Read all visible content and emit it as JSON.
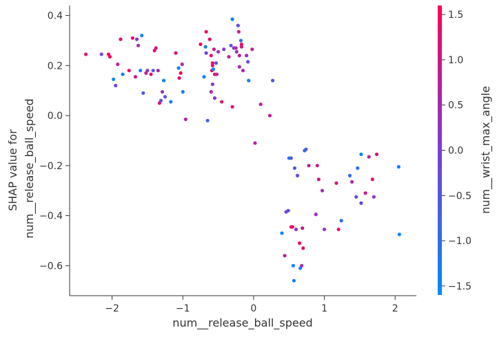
{
  "chart_data": {
    "type": "scatter",
    "xlabel": "num__release_ball_speed",
    "ylabel_lines": [
      "SHAP value for",
      "num__release_ball_speed"
    ],
    "xlim": [
      -2.6,
      2.3
    ],
    "ylim": [
      -0.72,
      0.44
    ],
    "x_ticks": [
      -2,
      -1,
      0,
      1,
      2
    ],
    "x_tick_labels": [
      "−2",
      "−1",
      "0",
      "1",
      "2"
    ],
    "y_ticks": [
      0.4,
      0.2,
      0.0,
      -0.2,
      -0.4,
      -0.6
    ],
    "y_tick_labels": [
      "0.4",
      "0.2",
      "0.0",
      "−0.2",
      "−0.4",
      "−0.6"
    ],
    "grid": false,
    "colorbar": {
      "label": "num__wrist_max_angle",
      "range": [
        -1.6,
        1.6
      ],
      "ticks": [
        1.5,
        1.0,
        0.5,
        0.0,
        -0.5,
        -1.0,
        -1.5
      ],
      "tick_labels": [
        "1.5",
        "1.0",
        "0.5",
        "0.0",
        "−0.5",
        "−1.0",
        "−1.5"
      ],
      "low_color": "#008bfb",
      "high_color": "#ff0052"
    },
    "points": [
      {
        "x": -2.37,
        "y": 0.245,
        "c": 1.2
      },
      {
        "x": -2.15,
        "y": 0.245,
        "c": -0.2
      },
      {
        "x": -2.05,
        "y": 0.245,
        "c": 1.5
      },
      {
        "x": -2.03,
        "y": 0.235,
        "c": 1.4
      },
      {
        "x": -1.98,
        "y": 0.145,
        "c": -1.5
      },
      {
        "x": -1.95,
        "y": 0.12,
        "c": 0.0
      },
      {
        "x": -1.92,
        "y": 0.205,
        "c": 0.8
      },
      {
        "x": -1.88,
        "y": 0.305,
        "c": 1.3
      },
      {
        "x": -1.85,
        "y": 0.165,
        "c": -1.4
      },
      {
        "x": -1.76,
        "y": 0.18,
        "c": 1.4
      },
      {
        "x": -1.71,
        "y": 0.31,
        "c": 1.3
      },
      {
        "x": -1.67,
        "y": 0.155,
        "c": 1.0
      },
      {
        "x": -1.65,
        "y": 0.305,
        "c": 0.2
      },
      {
        "x": -1.63,
        "y": 0.28,
        "c": 0.5
      },
      {
        "x": -1.6,
        "y": 0.18,
        "c": -1.3
      },
      {
        "x": -1.58,
        "y": 0.32,
        "c": -1.5
      },
      {
        "x": -1.56,
        "y": 0.09,
        "c": -0.6
      },
      {
        "x": -1.52,
        "y": 0.17,
        "c": 0.7
      },
      {
        "x": -1.5,
        "y": 0.18,
        "c": 0.3
      },
      {
        "x": -1.45,
        "y": 0.165,
        "c": 1.1
      },
      {
        "x": -1.42,
        "y": 0.18,
        "c": -0.6
      },
      {
        "x": -1.4,
        "y": 0.26,
        "c": 1.3
      },
      {
        "x": -1.38,
        "y": 0.27,
        "c": 1.0
      },
      {
        "x": -1.35,
        "y": 0.18,
        "c": 0.6
      },
      {
        "x": -1.33,
        "y": 0.05,
        "c": 1.0
      },
      {
        "x": -1.31,
        "y": 0.06,
        "c": -0.3
      },
      {
        "x": -1.29,
        "y": 0.095,
        "c": 0.4
      },
      {
        "x": -1.27,
        "y": 0.14,
        "c": -1.3
      },
      {
        "x": -1.25,
        "y": 0.075,
        "c": -0.4
      },
      {
        "x": -1.17,
        "y": 0.055,
        "c": -1.3
      },
      {
        "x": -1.1,
        "y": 0.25,
        "c": 1.1
      },
      {
        "x": -1.06,
        "y": 0.19,
        "c": -1.4
      },
      {
        "x": -1.05,
        "y": 0.15,
        "c": 1.2
      },
      {
        "x": -1.03,
        "y": 0.17,
        "c": 1.4
      },
      {
        "x": -1.01,
        "y": 0.205,
        "c": 0.6
      },
      {
        "x": -1.0,
        "y": 0.095,
        "c": -1.3
      },
      {
        "x": -0.96,
        "y": -0.015,
        "c": 0.6
      },
      {
        "x": -0.75,
        "y": 0.285,
        "c": 1.4
      },
      {
        "x": -0.7,
        "y": 0.155,
        "c": -1.4
      },
      {
        "x": -0.68,
        "y": 0.275,
        "c": -1.3
      },
      {
        "x": -0.67,
        "y": 0.335,
        "c": 1.5
      },
      {
        "x": -0.67,
        "y": 0.25,
        "c": -0.2
      },
      {
        "x": -0.65,
        "y": -0.02,
        "c": -0.7
      },
      {
        "x": -0.62,
        "y": 0.305,
        "c": 1.3
      },
      {
        "x": -0.6,
        "y": 0.24,
        "c": 1.2
      },
      {
        "x": -0.6,
        "y": 0.095,
        "c": 0.6
      },
      {
        "x": -0.59,
        "y": 0.18,
        "c": 1.3
      },
      {
        "x": -0.58,
        "y": 0.21,
        "c": 1.5
      },
      {
        "x": -0.58,
        "y": 0.2,
        "c": 1.4
      },
      {
        "x": -0.58,
        "y": 0.125,
        "c": 0.2
      },
      {
        "x": -0.57,
        "y": 0.185,
        "c": -1.3
      },
      {
        "x": -0.56,
        "y": 0.265,
        "c": 1.0
      },
      {
        "x": -0.55,
        "y": 0.165,
        "c": 1.2
      },
      {
        "x": -0.55,
        "y": 0.07,
        "c": 0.2
      },
      {
        "x": -0.53,
        "y": 0.21,
        "c": -0.4
      },
      {
        "x": -0.52,
        "y": 0.165,
        "c": 0.6
      },
      {
        "x": -0.5,
        "y": 0.255,
        "c": 0.4
      },
      {
        "x": -0.45,
        "y": 0.055,
        "c": 1.3
      },
      {
        "x": -0.42,
        "y": 0.265,
        "c": 0.1
      },
      {
        "x": -0.35,
        "y": 0.235,
        "c": 0.8
      },
      {
        "x": -0.32,
        "y": 0.28,
        "c": -0.4
      },
      {
        "x": -0.3,
        "y": 0.385,
        "c": -1.4
      },
      {
        "x": -0.3,
        "y": 0.035,
        "c": 1.2
      },
      {
        "x": -0.28,
        "y": 0.27,
        "c": 0.0
      },
      {
        "x": -0.25,
        "y": 0.27,
        "c": 0.7
      },
      {
        "x": -0.24,
        "y": 0.255,
        "c": 0.4
      },
      {
        "x": -0.22,
        "y": 0.36,
        "c": -0.3
      },
      {
        "x": -0.21,
        "y": 0.335,
        "c": 0.9
      },
      {
        "x": -0.2,
        "y": 0.24,
        "c": 0.8
      },
      {
        "x": -0.2,
        "y": 0.195,
        "c": 0.5
      },
      {
        "x": -0.18,
        "y": 0.3,
        "c": -1.0
      },
      {
        "x": -0.17,
        "y": 0.285,
        "c": 1.3
      },
      {
        "x": -0.17,
        "y": 0.275,
        "c": 1.1
      },
      {
        "x": -0.15,
        "y": 0.18,
        "c": 0.7
      },
      {
        "x": -0.1,
        "y": 0.24,
        "c": 0.4
      },
      {
        "x": -0.08,
        "y": 0.215,
        "c": -0.3
      },
      {
        "x": -0.07,
        "y": 0.14,
        "c": -1.4
      },
      {
        "x": -0.02,
        "y": 0.265,
        "c": 0.9
      },
      {
        "x": 0.02,
        "y": -0.11,
        "c": 0.7
      },
      {
        "x": 0.1,
        "y": 0.045,
        "c": 0.8
      },
      {
        "x": 0.23,
        "y": 0.0,
        "c": 0.9
      },
      {
        "x": 0.27,
        "y": 0.14,
        "c": -0.5
      },
      {
        "x": 0.4,
        "y": -0.47,
        "c": -1.4
      },
      {
        "x": 0.44,
        "y": -0.56,
        "c": 0.8
      },
      {
        "x": 0.46,
        "y": -0.385,
        "c": -0.1
      },
      {
        "x": 0.49,
        "y": -0.38,
        "c": -0.4
      },
      {
        "x": 0.5,
        "y": -0.17,
        "c": -1.3
      },
      {
        "x": 0.53,
        "y": -0.17,
        "c": -0.4
      },
      {
        "x": 0.53,
        "y": -0.445,
        "c": 1.4
      },
      {
        "x": 0.55,
        "y": -0.445,
        "c": 1.3
      },
      {
        "x": 0.56,
        "y": -0.6,
        "c": -1.4
      },
      {
        "x": 0.57,
        "y": -0.66,
        "c": -1.4
      },
      {
        "x": 0.58,
        "y": -0.21,
        "c": -0.6
      },
      {
        "x": 0.6,
        "y": -0.455,
        "c": 0.4
      },
      {
        "x": 0.62,
        "y": -0.24,
        "c": -0.3
      },
      {
        "x": 0.65,
        "y": -0.51,
        "c": 1.3
      },
      {
        "x": 0.66,
        "y": -0.61,
        "c": -1.3
      },
      {
        "x": 0.68,
        "y": -0.6,
        "c": 0.4
      },
      {
        "x": 0.69,
        "y": -0.45,
        "c": 0.9
      },
      {
        "x": 0.7,
        "y": -0.53,
        "c": 1.2
      },
      {
        "x": 0.72,
        "y": -0.14,
        "c": -1.0
      },
      {
        "x": 0.74,
        "y": -0.135,
        "c": -0.6
      },
      {
        "x": 0.78,
        "y": -0.2,
        "c": 0.8
      },
      {
        "x": 0.88,
        "y": -0.395,
        "c": 0.3
      },
      {
        "x": 0.9,
        "y": -0.2,
        "c": 0.7
      },
      {
        "x": 0.92,
        "y": -0.255,
        "c": 1.0
      },
      {
        "x": 0.97,
        "y": -0.3,
        "c": 0.5
      },
      {
        "x": 1.0,
        "y": -0.455,
        "c": 0.3
      },
      {
        "x": 1.17,
        "y": -0.27,
        "c": 1.1
      },
      {
        "x": 1.2,
        "y": -0.455,
        "c": 1.3
      },
      {
        "x": 1.24,
        "y": -0.42,
        "c": -0.9
      },
      {
        "x": 1.36,
        "y": -0.24,
        "c": -0.9
      },
      {
        "x": 1.39,
        "y": -0.265,
        "c": 0.6
      },
      {
        "x": 1.45,
        "y": -0.325,
        "c": -0.3
      },
      {
        "x": 1.47,
        "y": -0.21,
        "c": -1.0
      },
      {
        "x": 1.52,
        "y": -0.155,
        "c": -1.4
      },
      {
        "x": 1.52,
        "y": -0.35,
        "c": -0.2
      },
      {
        "x": 1.58,
        "y": -0.31,
        "c": 1.0
      },
      {
        "x": 1.63,
        "y": -0.165,
        "c": 0.8
      },
      {
        "x": 1.68,
        "y": -0.255,
        "c": 1.2
      },
      {
        "x": 1.7,
        "y": -0.325,
        "c": 0.3
      },
      {
        "x": 1.74,
        "y": -0.155,
        "c": 1.1
      },
      {
        "x": 2.05,
        "y": -0.205,
        "c": -1.4
      },
      {
        "x": 2.06,
        "y": -0.475,
        "c": -1.5
      }
    ]
  }
}
